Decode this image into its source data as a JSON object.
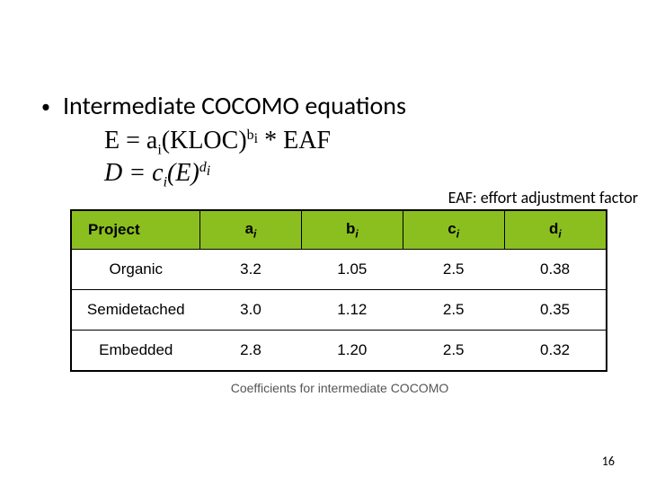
{
  "bullet": {
    "dot": "•",
    "text": "Intermediate COCOMO equations"
  },
  "equations": {
    "e_html": "E = a<sub>i</sub>(KLOC)<sup>b<sub>i</sub></sup> * EAF",
    "d_html": "<i>D</i> = <i>c</i><sub><i>i</i></sub>(<i>E</i>)<sup><i>d</i><sub><i>i</i></sub></sup>"
  },
  "eaf_note": "EAF: effort adjustment factor",
  "table": {
    "columns": [
      {
        "key": "project",
        "label": "Project",
        "sub": "",
        "class": "proj col-proj"
      },
      {
        "key": "a",
        "label": "a",
        "sub": "i",
        "class": "col-data"
      },
      {
        "key": "b",
        "label": "b",
        "sub": "i",
        "class": "col-data"
      },
      {
        "key": "c",
        "label": "c",
        "sub": "i",
        "class": "col-data"
      },
      {
        "key": "d",
        "label": "d",
        "sub": "i",
        "class": "col-data"
      }
    ],
    "rows": [
      {
        "project": "Organic",
        "a": "3.2",
        "b": "1.05",
        "c": "2.5",
        "d": "0.38"
      },
      {
        "project": "Semidetached",
        "a": "3.0",
        "b": "1.12",
        "c": "2.5",
        "d": "0.35"
      },
      {
        "project": "Embedded",
        "a": "2.8",
        "b": "1.20",
        "c": "2.5",
        "d": "0.32"
      }
    ],
    "header_bg": "#8bbf1f",
    "border_color": "#000000"
  },
  "caption": "Coefficients for intermediate COCOMO",
  "page_number": "16"
}
